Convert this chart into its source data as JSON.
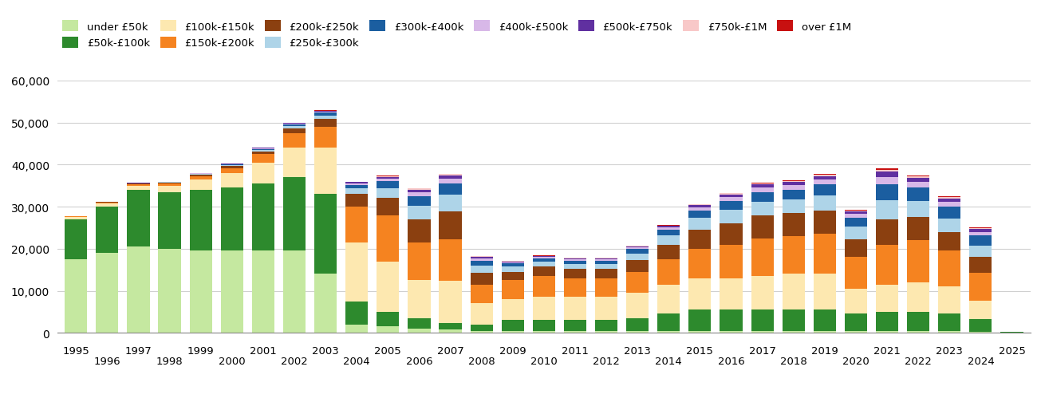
{
  "years": [
    1995,
    1996,
    1997,
    1998,
    1999,
    2000,
    2001,
    2002,
    2003,
    2004,
    2005,
    2006,
    2007,
    2008,
    2009,
    2010,
    2011,
    2012,
    2013,
    2014,
    2015,
    2016,
    2017,
    2018,
    2019,
    2020,
    2021,
    2022,
    2023,
    2024,
    2025
  ],
  "categories": [
    "under £50k",
    "£50k-£100k",
    "£100k-£150k",
    "£150k-£200k",
    "£200k-£250k",
    "£250k-£300k",
    "£300k-£400k",
    "£400k-£500k",
    "£500k-£750k",
    "£750k-£1M",
    "over £1M"
  ],
  "colors": [
    "#c5e8a0",
    "#2d8a2d",
    "#fde8b0",
    "#f58320",
    "#8b4010",
    "#aed4e8",
    "#1b5ea0",
    "#d8b8e8",
    "#6030a0",
    "#f8c8c8",
    "#c81010"
  ],
  "data": {
    "under £50k": [
      17500,
      19000,
      20500,
      20000,
      19500,
      19500,
      19500,
      19500,
      14000,
      2000,
      1500,
      1000,
      800,
      500,
      500,
      500,
      500,
      500,
      500,
      500,
      500,
      500,
      500,
      500,
      500,
      500,
      500,
      500,
      500,
      200,
      100
    ],
    "£50k-£100k": [
      9500,
      11000,
      13500,
      13500,
      14500,
      15000,
      16000,
      17500,
      19000,
      5500,
      3500,
      2500,
      1500,
      1500,
      2500,
      2500,
      2500,
      2500,
      3000,
      4000,
      5000,
      5000,
      5000,
      5000,
      5000,
      4000,
      4500,
      4500,
      4000,
      3000,
      50
    ],
    "£100k-£150k": [
      500,
      800,
      1000,
      1500,
      2500,
      3500,
      5000,
      7000,
      11000,
      14000,
      12000,
      9000,
      10000,
      5000,
      5000,
      5500,
      5500,
      5500,
      6000,
      7000,
      7500,
      7500,
      8000,
      8500,
      8500,
      6000,
      6500,
      7000,
      6500,
      4500,
      0
    ],
    "£150k-£200k": [
      150,
      200,
      350,
      550,
      800,
      1200,
      2000,
      3500,
      5000,
      8500,
      11000,
      9000,
      10000,
      4500,
      4500,
      5000,
      4500,
      4500,
      5000,
      6000,
      7000,
      8000,
      9000,
      9000,
      9500,
      7500,
      9500,
      10000,
      8500,
      6500,
      0
    ],
    "£200k-£250k": [
      60,
      90,
      130,
      200,
      300,
      500,
      700,
      1100,
      1800,
      3000,
      4200,
      5500,
      6500,
      2800,
      2000,
      2200,
      2200,
      2200,
      2800,
      3500,
      4500,
      5000,
      5500,
      5500,
      5500,
      4200,
      6000,
      5500,
      4500,
      3800,
      0
    ],
    "£250k-£300k": [
      30,
      45,
      60,
      100,
      150,
      220,
      320,
      520,
      850,
      1300,
      2200,
      3200,
      4000,
      1700,
      1200,
      1200,
      1200,
      1200,
      1600,
      2200,
      2800,
      3200,
      3200,
      3200,
      3600,
      3000,
      4500,
      3800,
      3200,
      2800,
      0
    ],
    "£300k-£400k": [
      20,
      30,
      45,
      70,
      110,
      160,
      250,
      430,
      700,
      900,
      1600,
      2300,
      2800,
      1200,
      800,
      800,
      800,
      800,
      1000,
      1300,
      1800,
      2200,
      2300,
      2300,
      2700,
      2200,
      3800,
      3200,
      2800,
      2300,
      0
    ],
    "£400k-£500k": [
      10,
      15,
      20,
      35,
      55,
      80,
      130,
      180,
      270,
      360,
      640,
      900,
      1100,
      500,
      300,
      320,
      320,
      320,
      420,
      520,
      700,
      900,
      1100,
      1100,
      1200,
      900,
      1700,
      1400,
      1100,
      900,
      0
    ],
    "£500k-£750k": [
      7,
      10,
      14,
      22,
      36,
      55,
      85,
      130,
      180,
      260,
      450,
      640,
      730,
      340,
      220,
      230,
      230,
      230,
      300,
      370,
      540,
      640,
      730,
      730,
      820,
      620,
      1300,
      1000,
      820,
      640,
      0
    ],
    "£750k-£1M": [
      3,
      5,
      7,
      11,
      18,
      25,
      40,
      55,
      75,
      105,
      180,
      255,
      275,
      130,
      85,
      90,
      90,
      90,
      110,
      140,
      185,
      230,
      255,
      255,
      275,
      225,
      460,
      370,
      295,
      230,
      0
    ],
    "over £1M": [
      2,
      3,
      4,
      6,
      10,
      14,
      22,
      32,
      45,
      62,
      108,
      155,
      165,
      78,
      50,
      54,
      54,
      54,
      64,
      84,
      110,
      138,
      154,
      154,
      165,
      135,
      276,
      222,
      177,
      138,
      0
    ]
  },
  "ylim": [
    0,
    60000
  ],
  "yticks": [
    0,
    10000,
    20000,
    30000,
    40000,
    50000,
    60000
  ],
  "background_color": "#ffffff",
  "grid_color": "#d0d0d0"
}
